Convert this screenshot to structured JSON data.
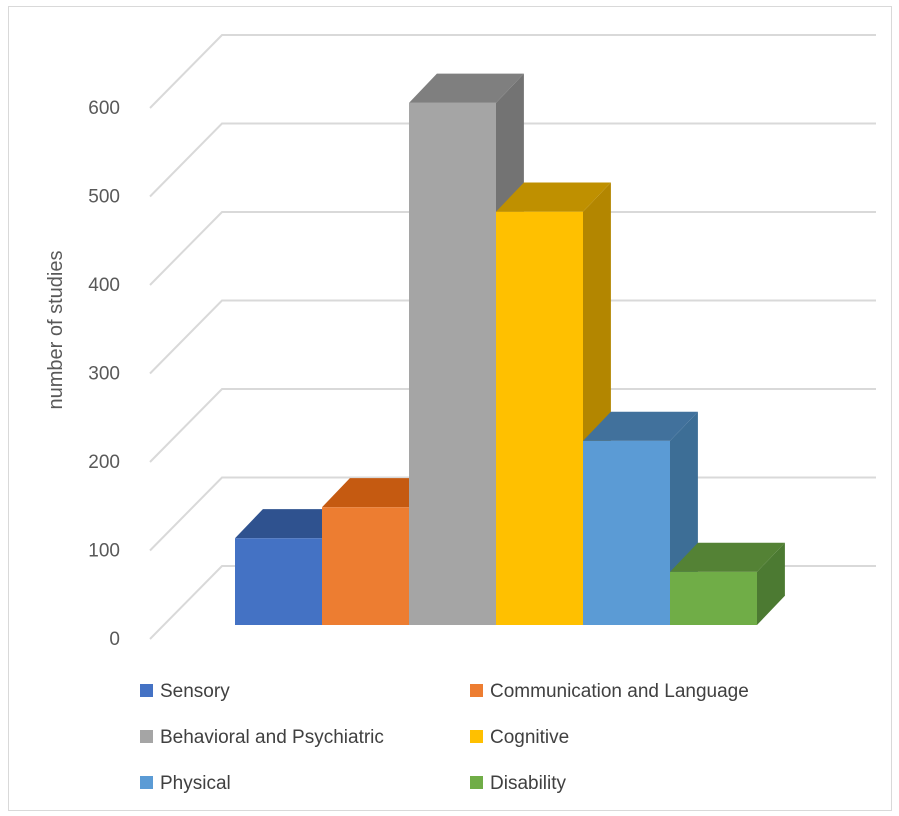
{
  "chart_data": {
    "type": "bar",
    "style": "3d-column",
    "ylabel": "number of studies",
    "xlabel": "",
    "ylim": [
      0,
      600
    ],
    "yticks": [
      0,
      100,
      200,
      300,
      400,
      500,
      600
    ],
    "grid": true,
    "legend_position": "bottom",
    "categories": [
      "Sensory",
      "Communication and Language",
      "Behavioral and Psychiatric",
      "Cognitive",
      "Physical",
      "Disability"
    ],
    "values": [
      98,
      133,
      590,
      467,
      208,
      60
    ],
    "colors": [
      "#4472c4",
      "#ed7d31",
      "#a5a5a5",
      "#ffc000",
      "#5b9bd5",
      "#70ad47"
    ],
    "side_colors": [
      "#2f5597",
      "#b55a20",
      "#737373",
      "#b38600",
      "#3d6e96",
      "#4c7a32"
    ],
    "top_colors": [
      "#2f528f",
      "#c55a11",
      "#7f7f7f",
      "#bf9000",
      "#41719c",
      "#548235"
    ]
  }
}
